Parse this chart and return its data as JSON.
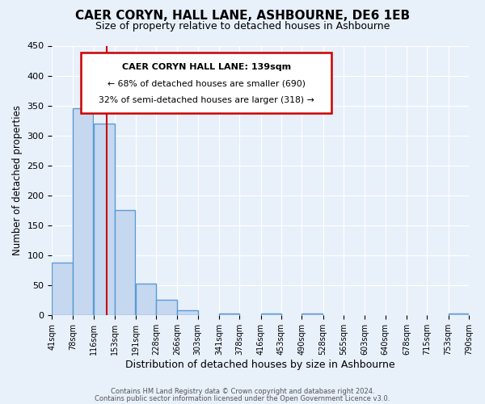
{
  "title": "CAER CORYN, HALL LANE, ASHBOURNE, DE6 1EB",
  "subtitle": "Size of property relative to detached houses in Ashbourne",
  "xlabel": "Distribution of detached houses by size in Ashbourne",
  "ylabel": "Number of detached properties",
  "bin_edges": [
    41,
    78,
    116,
    153,
    191,
    228,
    266,
    303,
    341,
    378,
    416,
    453,
    490,
    528,
    565,
    603,
    640,
    678,
    715,
    753,
    790
  ],
  "bar_heights": [
    88,
    345,
    320,
    175,
    52,
    25,
    8,
    0,
    2,
    0,
    2,
    0,
    2,
    0,
    0,
    0,
    0,
    0,
    0,
    2
  ],
  "bar_color": "#c5d8f0",
  "bar_edgecolor": "#5b9bd5",
  "bar_linewidth": 1.0,
  "vline_x": 139,
  "vline_color": "#cc0000",
  "vline_linewidth": 1.5,
  "ylim": [
    0,
    450
  ],
  "yticks": [
    0,
    50,
    100,
    150,
    200,
    250,
    300,
    350,
    400,
    450
  ],
  "annotation_title": "CAER CORYN HALL LANE: 139sqm",
  "annotation_line1": "← 68% of detached houses are smaller (690)",
  "annotation_line2": "32% of semi-detached houses are larger (318) →",
  "background_color": "#e8f0fa",
  "grid_color": "#ffffff",
  "footer_line1": "Contains HM Land Registry data © Crown copyright and database right 2024.",
  "footer_line2": "Contains public sector information licensed under the Open Government Licence v3.0."
}
